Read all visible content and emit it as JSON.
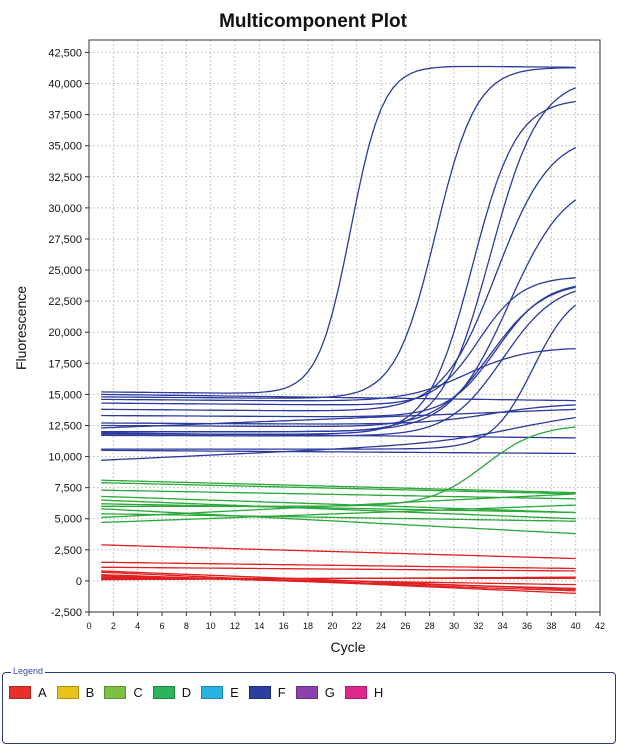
{
  "chart_data": {
    "type": "line",
    "title": "Multicomponent Plot",
    "xlabel": "Cycle",
    "ylabel": "Fluorescence",
    "xlim": [
      0,
      42
    ],
    "ylim": [
      -2500,
      43500
    ],
    "x_ticks": [
      "0",
      "2",
      "4",
      "6",
      "8",
      "10",
      "12",
      "14",
      "16",
      "18",
      "20",
      "22",
      "24",
      "26",
      "28",
      "30",
      "32",
      "34",
      "36",
      "38",
      "40",
      "42"
    ],
    "y_ticks": [
      "-2,500",
      "0",
      "2,500",
      "5,000",
      "7,500",
      "10,000",
      "12,500",
      "15,000",
      "17,500",
      "20,000",
      "22,500",
      "25,000",
      "27,500",
      "30,000",
      "32,500",
      "35,000",
      "37,500",
      "40,000",
      "42,500"
    ],
    "grid": true,
    "x": [
      1,
      40
    ],
    "series_groups": [
      {
        "dye": "F",
        "color": "#2b3a9c",
        "curves": [
          {
            "base": 15200,
            "slope": -400,
            "amp": 26500,
            "mid": 21.5,
            "k": 0.75
          },
          {
            "base": 14800,
            "slope": -300,
            "amp": 26800,
            "mid": 28.5,
            "k": 0.6
          },
          {
            "base": 12000,
            "slope": 0,
            "amp": 28500,
            "mid": 33.0,
            "k": 0.5
          },
          {
            "base": 11800,
            "slope": 0,
            "amp": 27000,
            "mid": 31.5,
            "k": 0.55
          },
          {
            "base": 13800,
            "slope": -300,
            "amp": 22500,
            "mid": 33.5,
            "k": 0.45
          },
          {
            "base": 12000,
            "slope": 0,
            "amp": 20500,
            "mid": 34.5,
            "k": 0.42
          },
          {
            "base": 14300,
            "slope": -300,
            "amp": 10500,
            "mid": 32.0,
            "k": 0.55
          },
          {
            "base": 13300,
            "slope": -200,
            "amp": 11000,
            "mid": 33.5,
            "k": 0.5
          },
          {
            "base": 12500,
            "slope": -200,
            "amp": 11800,
            "mid": 33.0,
            "k": 0.45
          },
          {
            "base": 11700,
            "slope": -100,
            "amp": 12500,
            "mid": 34.0,
            "k": 0.45
          },
          {
            "base": 10600,
            "slope": 0,
            "amp": 13000,
            "mid": 36.5,
            "k": 0.6
          },
          {
            "base": 14600,
            "slope": -300,
            "amp": 4500,
            "mid": 31.0,
            "k": 0.4
          },
          {
            "base": 12700,
            "slope": -200,
            "amp": 1800,
            "mid": 33.0,
            "k": 0.35
          },
          {
            "base": 9700,
            "slope": 1800,
            "amp": 2000,
            "mid": 35.0,
            "k": 0.3
          },
          {
            "base": 12300,
            "slope": 1500,
            "amp": 0,
            "mid": 30,
            "k": 0.5
          },
          {
            "base": 15000,
            "slope": -500,
            "amp": 0,
            "mid": 30,
            "k": 0.5
          },
          {
            "base": 10500,
            "slope": -250,
            "amp": 0,
            "mid": 30,
            "k": 0.5
          },
          {
            "base": 11900,
            "slope": -400,
            "amp": 0,
            "mid": 30,
            "k": 0.5
          }
        ]
      },
      {
        "dye": "C/D",
        "color": "#2aa83a",
        "curves": [
          {
            "base": 8100,
            "slope": -1000,
            "amp": 0,
            "mid": 30,
            "k": 0.5
          },
          {
            "base": 7900,
            "slope": -900,
            "amp": 0,
            "mid": 30,
            "k": 0.5
          },
          {
            "base": 7300,
            "slope": -700,
            "amp": 0,
            "mid": 30,
            "k": 0.5
          },
          {
            "base": 6800,
            "slope": -1300,
            "amp": 0,
            "mid": 30,
            "k": 0.5
          },
          {
            "base": 6500,
            "slope": -1500,
            "amp": 0,
            "mid": 30,
            "k": 0.5
          },
          {
            "base": 6200,
            "slope": -700,
            "amp": 0,
            "mid": 30,
            "k": 0.5
          },
          {
            "base": 5800,
            "slope": -2000,
            "amp": 0,
            "mid": 30,
            "k": 0.5
          },
          {
            "base": 5400,
            "slope": -600,
            "amp": 0,
            "mid": 30,
            "k": 0.5
          },
          {
            "base": 5100,
            "slope": 1900,
            "amp": 0,
            "mid": 30,
            "k": 0.5
          },
          {
            "base": 4700,
            "slope": 1400,
            "amp": 0,
            "mid": 30,
            "k": 0.5
          },
          {
            "base": 6000,
            "slope": 0,
            "amp": 6600,
            "mid": 32.5,
            "k": 0.45
          }
        ]
      },
      {
        "dye": "A",
        "color": "#e02020",
        "curves": [
          {
            "base": 2900,
            "slope": -1100,
            "amp": 0,
            "mid": 30,
            "k": 0.5
          },
          {
            "base": 1500,
            "slope": -500,
            "amp": 0,
            "mid": 30,
            "k": 0.5
          },
          {
            "base": 1100,
            "slope": -300,
            "amp": 0,
            "mid": 30,
            "k": 0.5
          },
          {
            "base": 800,
            "slope": -1500,
            "amp": 0,
            "mid": 30,
            "k": 0.5
          },
          {
            "base": 700,
            "slope": -1700,
            "amp": 0,
            "mid": 30,
            "k": 0.5
          },
          {
            "base": 500,
            "slope": -1300,
            "amp": 0,
            "mid": 30,
            "k": 0.5
          },
          {
            "base": 400,
            "slope": -1000,
            "amp": 0,
            "mid": 30,
            "k": 0.5
          },
          {
            "base": 300,
            "slope": -600,
            "amp": 0,
            "mid": 30,
            "k": 0.5
          },
          {
            "base": 200,
            "slope": 0,
            "amp": 0,
            "mid": 30,
            "k": 0.5
          },
          {
            "base": 100,
            "slope": 200,
            "amp": 0,
            "mid": 30,
            "k": 0.5
          }
        ]
      }
    ]
  },
  "legend": {
    "title": "Legend",
    "items": [
      {
        "label": "A",
        "color": "#e8302a"
      },
      {
        "label": "B",
        "color": "#e6c21a"
      },
      {
        "label": "C",
        "color": "#7cc242"
      },
      {
        "label": "D",
        "color": "#2bb55a"
      },
      {
        "label": "E",
        "color": "#27b3e0"
      },
      {
        "label": "F",
        "color": "#2a3f9e"
      },
      {
        "label": "G",
        "color": "#8e3fae"
      },
      {
        "label": "H",
        "color": "#e0288c"
      }
    ]
  }
}
